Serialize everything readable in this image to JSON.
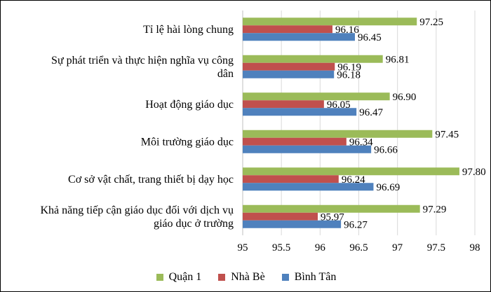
{
  "chart_data": {
    "type": "bar",
    "orientation": "horizontal",
    "categories": [
      [
        "Tỉ lệ hài lòng chung"
      ],
      [
        "Sự phát triển và thực hiện nghĩa vụ công",
        "dân"
      ],
      [
        "Hoạt động giáo dục"
      ],
      [
        "Môi trường giáo dục"
      ],
      [
        "Cơ sở vật chất, trang thiết bị dạy học"
      ],
      [
        "Khả năng tiếp cận giáo dục đối với dịch vụ",
        "giáo dục ở trường"
      ]
    ],
    "series": [
      {
        "name": "Quận 1",
        "color": "#9BBB59",
        "values": [
          97.25,
          96.81,
          96.9,
          97.45,
          97.8,
          97.29
        ],
        "labels": [
          "97.25",
          "96.81",
          "96.90",
          "97.45",
          "97.80",
          "97.29"
        ]
      },
      {
        "name": "Nhà Bè",
        "color": "#C0504D",
        "values": [
          96.16,
          96.19,
          96.05,
          96.34,
          96.24,
          95.97
        ],
        "labels": [
          "96.16",
          "96.19",
          "96.05",
          "96.34",
          "96.24",
          "95.97"
        ]
      },
      {
        "name": "Bình Tân",
        "color": "#4F81BD",
        "values": [
          96.45,
          96.18,
          96.47,
          96.66,
          96.69,
          96.27
        ],
        "labels": [
          "96.45",
          "96.18",
          "96.47",
          "96.66",
          "96.69",
          "96.27"
        ]
      }
    ],
    "xlim": [
      95,
      98
    ],
    "xticks": [
      "95",
      "95.5",
      "96",
      "96.5",
      "97",
      "97.5",
      "98"
    ],
    "grid": true,
    "legend_position": "bottom"
  }
}
